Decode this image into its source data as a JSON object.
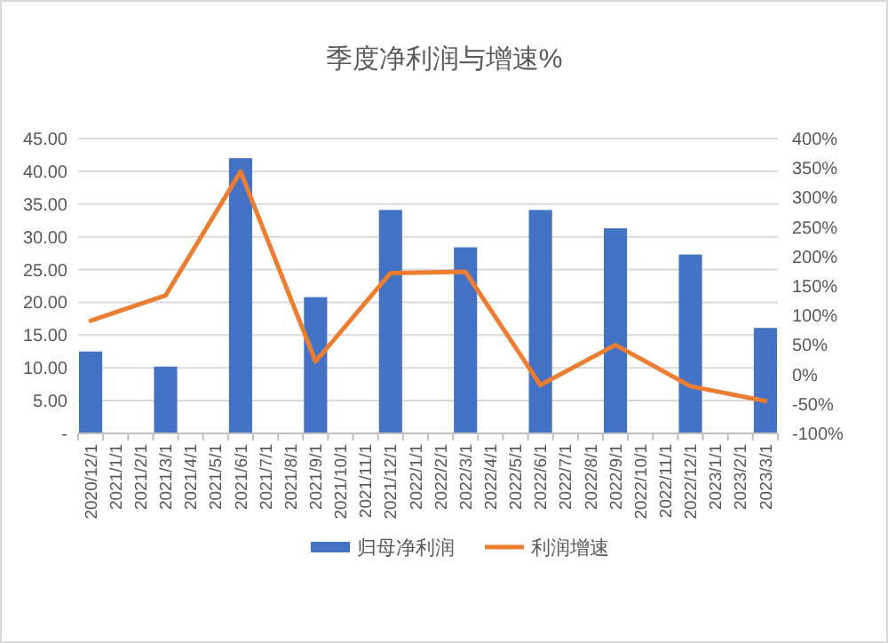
{
  "chart_data": {
    "type": "bar",
    "title": "季度净利润与增速%",
    "categories": [
      "2020/12/1",
      "2021/1/1",
      "2021/2/1",
      "2021/3/1",
      "2021/4/1",
      "2021/5/1",
      "2021/6/1",
      "2021/7/1",
      "2021/8/1",
      "2021/9/1",
      "2021/10/1",
      "2021/11/1",
      "2021/12/1",
      "2022/1/1",
      "2022/2/1",
      "2022/3/1",
      "2022/4/1",
      "2022/5/1",
      "2022/6/1",
      "2022/7/1",
      "2022/8/1",
      "2022/9/1",
      "2022/10/1",
      "2022/11/1",
      "2022/12/1",
      "2023/1/1",
      "2023/2/1",
      "2023/3/1"
    ],
    "series": [
      {
        "name": "归母净利润",
        "color": "#4472c4",
        "values": [
          12.5,
          null,
          null,
          10.2,
          null,
          null,
          42,
          null,
          null,
          20.8,
          null,
          null,
          34.1,
          null,
          null,
          28.4,
          null,
          null,
          34.1,
          null,
          null,
          31.3,
          null,
          null,
          27.3,
          null,
          null,
          16.1
        ]
      },
      {
        "name": "利润增速",
        "type": "line",
        "axis": "y2",
        "color": "#ed7d31",
        "values": [
          91,
          null,
          null,
          134,
          null,
          null,
          344,
          null,
          null,
          22,
          null,
          null,
          172,
          null,
          null,
          174,
          null,
          null,
          -18,
          null,
          null,
          50,
          null,
          null,
          -20,
          null,
          null,
          -45
        ]
      }
    ],
    "ylim": [
      0,
      45
    ],
    "yticks": [
      {
        "value": 0,
        "label": "-"
      },
      {
        "value": 5,
        "label": "5.00"
      },
      {
        "value": 10,
        "label": "10.00"
      },
      {
        "value": 15,
        "label": "15.00"
      },
      {
        "value": 20,
        "label": "20.00"
      },
      {
        "value": 25,
        "label": "25.00"
      },
      {
        "value": 30,
        "label": "30.00"
      },
      {
        "value": 35,
        "label": "35.00"
      },
      {
        "value": 40,
        "label": "40.00"
      },
      {
        "value": 45,
        "label": "45.00"
      }
    ],
    "y2lim": [
      -100,
      400
    ],
    "y2ticks": [
      {
        "value": -100,
        "label": "-100%"
      },
      {
        "value": -50,
        "label": "-50%"
      },
      {
        "value": 0,
        "label": "0%"
      },
      {
        "value": 50,
        "label": "50%"
      },
      {
        "value": 100,
        "label": "100%"
      },
      {
        "value": 150,
        "label": "150%"
      },
      {
        "value": 200,
        "label": "200%"
      },
      {
        "value": 250,
        "label": "250%"
      },
      {
        "value": 300,
        "label": "300%"
      },
      {
        "value": 350,
        "label": "350%"
      },
      {
        "value": 400,
        "label": "400%"
      }
    ],
    "grid": "y",
    "legend": "bottom",
    "marker": "none",
    "line_style": "solid"
  }
}
